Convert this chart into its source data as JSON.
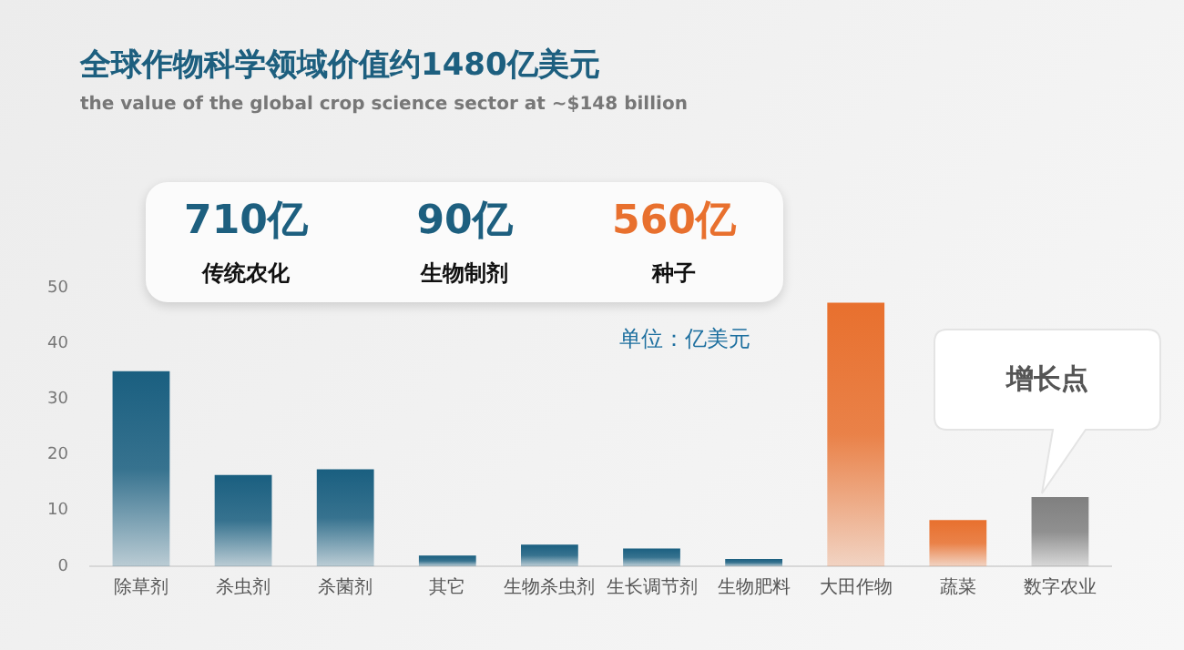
{
  "chart_data": {
    "type": "bar",
    "title": "全球作物科学领域价值约1480亿美元",
    "subtitle": "the value of the global crop science sector at ~$148 billion",
    "categories": [
      "除草剂",
      "杀虫剂",
      "杀菌剂",
      "其它",
      "生物杀虫剂",
      "生长调节剂",
      "生物肥料",
      "大田作物",
      "蔬菜",
      "数字农业"
    ],
    "values": [
      35,
      16.4,
      17.4,
      1.9,
      3.9,
      3.2,
      1.3,
      47.3,
      8.3,
      12.4
    ],
    "colors": [
      "#1a5f80",
      "#1a5f80",
      "#1a5f80",
      "#1a5f80",
      "#1a5f80",
      "#1a5f80",
      "#1a5f80",
      "#e8702e",
      "#e8702e",
      "#808080"
    ],
    "ylim": [
      0,
      50
    ],
    "yticks": [
      0,
      10,
      20,
      30,
      40,
      50
    ],
    "grid": false,
    "legend": false,
    "annotations": [
      "710亿",
      "传统农化",
      "90亿",
      "生物制剂",
      "560亿",
      "种子",
      "单位：亿美元",
      "增长点"
    ]
  }
}
